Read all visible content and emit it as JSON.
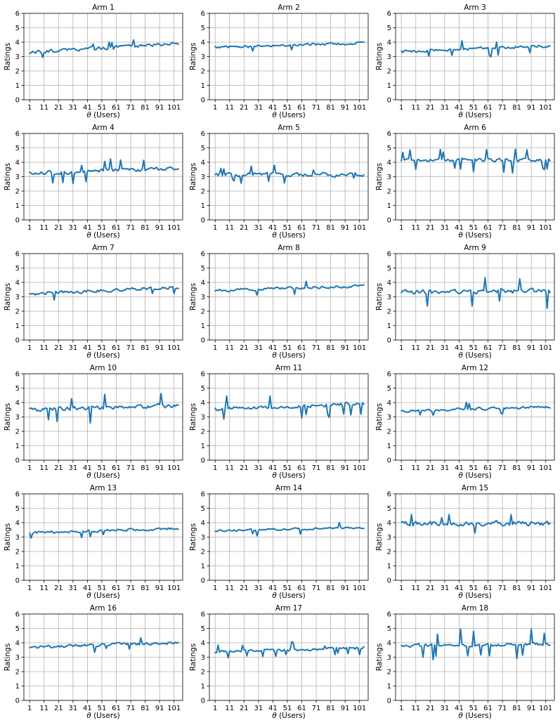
{
  "colors": {
    "series": "#1f77b4"
  },
  "chart_data": [
    {
      "type": "line",
      "title": "Arm 1",
      "xlabel": "θ (Users)",
      "ylabel": "Ratings",
      "xlim": [
        -3,
        107
      ],
      "ylim": [
        0,
        6
      ],
      "xticks": [
        1,
        11,
        21,
        31,
        41,
        51,
        61,
        71,
        81,
        91,
        101
      ],
      "yticks": [
        0,
        1,
        2,
        3,
        4,
        5,
        6
      ],
      "grid": true,
      "x_start": 1,
      "x_step": 1,
      "seed": 1,
      "mean": 3.6,
      "trend": 0.6,
      "spread": 0.18,
      "outlier_freq": 0.07,
      "outlier_size": 0.5,
      "series": [
        {
          "summary": "line fluctuating between about 3.1 and 4.3, rising slightly"
        }
      ]
    },
    {
      "type": "line",
      "title": "Arm 2",
      "xlabel": "θ (Users)",
      "ylabel": "Ratings",
      "xlim": [
        -3,
        107
      ],
      "ylim": [
        0,
        6
      ],
      "xticks": [
        1,
        11,
        21,
        31,
        41,
        51,
        61,
        71,
        81,
        91,
        101
      ],
      "yticks": [
        0,
        1,
        2,
        3,
        4,
        5,
        6
      ],
      "grid": true,
      "x_start": 1,
      "x_step": 1,
      "seed": 2,
      "mean": 3.8,
      "trend": 0.3,
      "spread": 0.14,
      "outlier_freq": 0.05,
      "outlier_size": 0.4,
      "series": [
        {
          "summary": "line between about 3.4 and 4.3"
        }
      ]
    },
    {
      "type": "line",
      "title": "Arm 3",
      "xlabel": "θ (Users)",
      "ylabel": "Ratings",
      "xlim": [
        -3,
        107
      ],
      "ylim": [
        0,
        6
      ],
      "xticks": [
        1,
        11,
        21,
        31,
        41,
        51,
        61,
        71,
        81,
        91,
        101
      ],
      "yticks": [
        0,
        1,
        2,
        3,
        4,
        5,
        6
      ],
      "grid": true,
      "x_start": 1,
      "x_step": 1,
      "seed": 3,
      "mean": 3.55,
      "trend": 0.4,
      "spread": 0.16,
      "outlier_freq": 0.06,
      "outlier_size": 0.6,
      "series": [
        {
          "summary": "line between about 2.8 and 4.4"
        }
      ]
    },
    {
      "type": "line",
      "title": "Arm 4",
      "xlabel": "θ (Users)",
      "ylabel": "Ratings",
      "xlim": [
        -3,
        107
      ],
      "ylim": [
        0,
        6
      ],
      "xticks": [
        1,
        11,
        21,
        31,
        41,
        51,
        61,
        71,
        81,
        91,
        101
      ],
      "yticks": [
        0,
        1,
        2,
        3,
        4,
        5,
        6
      ],
      "grid": true,
      "x_start": 1,
      "x_step": 1,
      "seed": 4,
      "mean": 3.4,
      "trend": 0.3,
      "spread": 0.2,
      "outlier_freq": 0.1,
      "outlier_size": 0.8,
      "series": [
        {
          "summary": "line between about 2.4 and 4.5"
        }
      ]
    },
    {
      "type": "line",
      "title": "Arm 5",
      "xlabel": "θ (Users)",
      "ylabel": "Ratings",
      "xlim": [
        -3,
        107
      ],
      "ylim": [
        0,
        6
      ],
      "xticks": [
        1,
        11,
        21,
        31,
        41,
        51,
        61,
        71,
        81,
        91,
        101
      ],
      "yticks": [
        0,
        1,
        2,
        3,
        4,
        5,
        6
      ],
      "grid": true,
      "x_start": 1,
      "x_step": 1,
      "seed": 5,
      "mean": 3.15,
      "trend": 0.0,
      "spread": 0.22,
      "outlier_freq": 0.09,
      "outlier_size": 0.6,
      "series": [
        {
          "summary": "line between about 2.4 and 3.9"
        }
      ]
    },
    {
      "type": "line",
      "title": "Arm 6",
      "xlabel": "θ (Users)",
      "ylabel": "Ratings",
      "xlim": [
        -3,
        107
      ],
      "ylim": [
        0,
        6
      ],
      "xticks": [
        1,
        11,
        21,
        31,
        41,
        51,
        61,
        71,
        81,
        91,
        101
      ],
      "yticks": [
        0,
        1,
        2,
        3,
        4,
        5,
        6
      ],
      "grid": true,
      "x_start": 1,
      "x_step": 1,
      "seed": 6,
      "mean": 4.15,
      "trend": 0.0,
      "spread": 0.17,
      "outlier_freq": 0.1,
      "outlier_size": 0.9,
      "series": [
        {
          "summary": "line between about 2.7 and 5.0"
        }
      ]
    },
    {
      "type": "line",
      "title": "Arm 7",
      "xlabel": "θ (Users)",
      "ylabel": "Ratings",
      "xlim": [
        -3,
        107
      ],
      "ylim": [
        0,
        6
      ],
      "xticks": [
        1,
        11,
        21,
        31,
        41,
        51,
        61,
        71,
        81,
        91,
        101
      ],
      "yticks": [
        0,
        1,
        2,
        3,
        4,
        5,
        6
      ],
      "grid": true,
      "x_start": 1,
      "x_step": 1,
      "seed": 7,
      "mean": 3.45,
      "trend": 0.5,
      "spread": 0.18,
      "outlier_freq": 0.06,
      "outlier_size": 0.6,
      "series": [
        {
          "summary": "line between about 3.0 and 4.6"
        }
      ]
    },
    {
      "type": "line",
      "title": "Arm 8",
      "xlabel": "θ (Users)",
      "ylabel": "Ratings",
      "xlim": [
        -3,
        107
      ],
      "ylim": [
        0,
        6
      ],
      "xticks": [
        1,
        11,
        21,
        31,
        41,
        51,
        61,
        71,
        81,
        91,
        101
      ],
      "yticks": [
        0,
        1,
        2,
        3,
        4,
        5,
        6
      ],
      "grid": true,
      "x_start": 1,
      "x_step": 1,
      "seed": 8,
      "mean": 3.6,
      "trend": 0.3,
      "spread": 0.14,
      "outlier_freq": 0.05,
      "outlier_size": 0.5,
      "series": [
        {
          "summary": "line between about 3.1 and 4.1"
        }
      ]
    },
    {
      "type": "line",
      "title": "Arm 9",
      "xlabel": "θ (Users)",
      "ylabel": "Ratings",
      "xlim": [
        -3,
        107
      ],
      "ylim": [
        0,
        6
      ],
      "xticks": [
        1,
        11,
        21,
        31,
        41,
        51,
        61,
        71,
        81,
        91,
        101
      ],
      "yticks": [
        0,
        1,
        2,
        3,
        4,
        5,
        6
      ],
      "grid": true,
      "x_start": 1,
      "x_step": 1,
      "seed": 9,
      "mean": 3.35,
      "trend": 0.1,
      "spread": 0.25,
      "outlier_freq": 0.12,
      "outlier_size": 1.1,
      "series": [
        {
          "summary": "line between about 1.8 and 4.8"
        }
      ]
    },
    {
      "type": "line",
      "title": "Arm 10",
      "xlabel": "θ (Users)",
      "ylabel": "Ratings",
      "xlim": [
        -3,
        107
      ],
      "ylim": [
        0,
        6
      ],
      "xticks": [
        1,
        11,
        21,
        31,
        41,
        51,
        61,
        71,
        81,
        91,
        101
      ],
      "yticks": [
        0,
        1,
        2,
        3,
        4,
        5,
        6
      ],
      "grid": true,
      "x_start": 1,
      "x_step": 1,
      "seed": 10,
      "mean": 3.65,
      "trend": 0.3,
      "spread": 0.22,
      "outlier_freq": 0.1,
      "outlier_size": 1.1,
      "series": [
        {
          "summary": "line between about 2.3 and 4.5"
        }
      ]
    },
    {
      "type": "line",
      "title": "Arm 11",
      "xlabel": "θ (Users)",
      "ylabel": "Ratings",
      "xlim": [
        -3,
        107
      ],
      "ylim": [
        0,
        6
      ],
      "xticks": [
        1,
        11,
        21,
        31,
        41,
        51,
        61,
        71,
        81,
        91,
        101
      ],
      "yticks": [
        0,
        1,
        2,
        3,
        4,
        5,
        6
      ],
      "grid": true,
      "x_start": 1,
      "x_step": 1,
      "seed": 11,
      "mean": 3.75,
      "trend": 0.4,
      "spread": 0.2,
      "outlier_freq": 0.09,
      "outlier_size": 0.9,
      "series": [
        {
          "summary": "line between about 2.3 and 4.6"
        }
      ]
    },
    {
      "type": "line",
      "title": "Arm 12",
      "xlabel": "θ (Users)",
      "ylabel": "Ratings",
      "xlim": [
        -3,
        107
      ],
      "ylim": [
        0,
        6
      ],
      "xticks": [
        1,
        11,
        21,
        31,
        41,
        51,
        61,
        71,
        81,
        91,
        101
      ],
      "yticks": [
        0,
        1,
        2,
        3,
        4,
        5,
        6
      ],
      "grid": true,
      "x_start": 1,
      "x_step": 1,
      "seed": 12,
      "mean": 3.55,
      "trend": 0.3,
      "spread": 0.14,
      "outlier_freq": 0.06,
      "outlier_size": 0.5,
      "series": [
        {
          "summary": "line between about 3.0 and 4.3"
        }
      ]
    },
    {
      "type": "line",
      "title": "Arm 13",
      "xlabel": "θ (Users)",
      "ylabel": "Ratings",
      "xlim": [
        -3,
        107
      ],
      "ylim": [
        0,
        6
      ],
      "xticks": [
        1,
        11,
        21,
        31,
        41,
        51,
        61,
        71,
        81,
        91,
        101
      ],
      "yticks": [
        0,
        1,
        2,
        3,
        4,
        5,
        6
      ],
      "grid": true,
      "x_start": 1,
      "x_step": 1,
      "seed": 13,
      "mean": 3.45,
      "trend": 0.3,
      "spread": 0.14,
      "outlier_freq": 0.06,
      "outlier_size": 0.5,
      "series": [
        {
          "summary": "line between about 3.0 and 4.2"
        }
      ]
    },
    {
      "type": "line",
      "title": "Arm 14",
      "xlabel": "θ (Users)",
      "ylabel": "Ratings",
      "xlim": [
        -3,
        107
      ],
      "ylim": [
        0,
        6
      ],
      "xticks": [
        1,
        11,
        21,
        31,
        41,
        51,
        61,
        71,
        81,
        91,
        101
      ],
      "yticks": [
        0,
        1,
        2,
        3,
        4,
        5,
        6
      ],
      "grid": true,
      "x_start": 1,
      "x_step": 1,
      "seed": 14,
      "mean": 3.55,
      "trend": 0.2,
      "spread": 0.11,
      "outlier_freq": 0.05,
      "outlier_size": 0.5,
      "series": [
        {
          "summary": "line between about 3.1 and 4.4"
        }
      ]
    },
    {
      "type": "line",
      "title": "Arm 15",
      "xlabel": "θ (Users)",
      "ylabel": "Ratings",
      "xlim": [
        -3,
        107
      ],
      "ylim": [
        0,
        6
      ],
      "xticks": [
        1,
        11,
        21,
        31,
        41,
        51,
        61,
        71,
        81,
        91,
        101
      ],
      "yticks": [
        0,
        1,
        2,
        3,
        4,
        5,
        6
      ],
      "grid": true,
      "x_start": 1,
      "x_step": 1,
      "seed": 15,
      "mean": 3.95,
      "trend": 0.0,
      "spread": 0.25,
      "outlier_freq": 0.12,
      "outlier_size": 0.9,
      "series": [
        {
          "summary": "line between about 2.7 and 5.0"
        }
      ]
    },
    {
      "type": "line",
      "title": "Arm 16",
      "xlabel": "θ (Users)",
      "ylabel": "Ratings",
      "xlim": [
        -3,
        107
      ],
      "ylim": [
        0,
        6
      ],
      "xticks": [
        1,
        11,
        21,
        31,
        41,
        51,
        61,
        71,
        81,
        91,
        101
      ],
      "yticks": [
        0,
        1,
        2,
        3,
        4,
        5,
        6
      ],
      "grid": true,
      "x_start": 1,
      "x_step": 1,
      "seed": 16,
      "mean": 3.85,
      "trend": 0.3,
      "spread": 0.17,
      "outlier_freq": 0.06,
      "outlier_size": 0.5,
      "series": [
        {
          "summary": "line between about 3.4 and 4.5"
        }
      ]
    },
    {
      "type": "line",
      "title": "Arm 17",
      "xlabel": "θ (Users)",
      "ylabel": "Ratings",
      "xlim": [
        -3,
        107
      ],
      "ylim": [
        0,
        6
      ],
      "xticks": [
        1,
        11,
        21,
        31,
        41,
        51,
        61,
        71,
        81,
        91,
        101
      ],
      "yticks": [
        0,
        1,
        2,
        3,
        4,
        5,
        6
      ],
      "grid": true,
      "x_start": 1,
      "x_step": 1,
      "seed": 17,
      "mean": 3.5,
      "trend": 0.3,
      "spread": 0.16,
      "outlier_freq": 0.06,
      "outlier_size": 0.5,
      "series": [
        {
          "summary": "line between about 3.0 and 4.1"
        }
      ]
    },
    {
      "type": "line",
      "title": "Arm 18",
      "xlabel": "θ (Users)",
      "ylabel": "Ratings",
      "xlim": [
        -3,
        107
      ],
      "ylim": [
        0,
        6
      ],
      "xticks": [
        1,
        11,
        21,
        31,
        41,
        51,
        61,
        71,
        81,
        91,
        101
      ],
      "yticks": [
        0,
        1,
        2,
        3,
        4,
        5,
        6
      ],
      "grid": true,
      "x_start": 1,
      "x_step": 1,
      "seed": 18,
      "mean": 3.85,
      "trend": 0.1,
      "spread": 0.18,
      "outlier_freq": 0.08,
      "outlier_size": 1.1,
      "series": [
        {
          "summary": "line between about 2.5 and 4.4"
        }
      ]
    }
  ]
}
